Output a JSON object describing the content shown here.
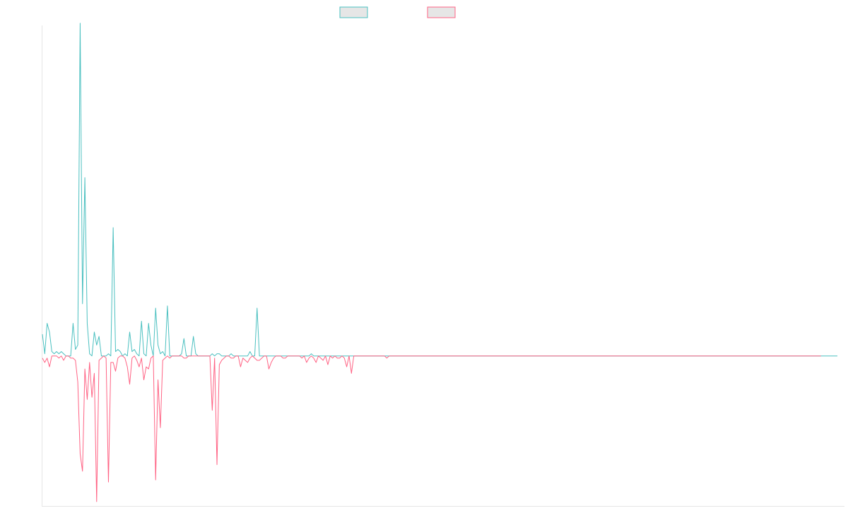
{
  "colors": {
    "positive_series": "#4bc0c0",
    "negative_series": "#ff6384",
    "axis": "#e5e5e5",
    "legend_fill": "#e6e6e6"
  },
  "chart_data": {
    "type": "line",
    "title": "",
    "xlabel": "",
    "ylabel": "",
    "grid": false,
    "legend_position": "top-center",
    "x_range": [
      0,
      340
    ],
    "ylim": [
      -0.69,
      1.52
    ],
    "series": [
      {
        "name": "",
        "color": "#4bc0c0",
        "values": [
          0.1,
          0.01,
          0.15,
          0.11,
          0.02,
          0.01,
          0.02,
          0.01,
          0.02,
          0.01,
          0.0,
          0.0,
          0.0,
          0.15,
          0.03,
          0.05,
          1.53,
          0.24,
          0.82,
          0.15,
          0.01,
          0.0,
          0.11,
          0.05,
          0.09,
          0.0,
          0.0,
          0.0,
          0.01,
          0.0,
          0.59,
          0.02,
          0.03,
          0.02,
          0.0,
          0.01,
          0.0,
          0.11,
          0.02,
          0.03,
          0.01,
          0.0,
          0.16,
          0.01,
          0.0,
          0.15,
          0.05,
          0.0,
          0.22,
          0.05,
          0.01,
          0.02,
          0.0,
          0.23,
          0.0,
          0.0,
          0.0,
          0.0,
          0.0,
          0.01,
          0.08,
          0.0,
          0.0,
          0.0,
          0.09,
          0.01,
          0.0,
          0.0,
          0.0,
          0.0,
          0.0,
          0.0,
          0.01,
          0.0,
          0.01,
          0.01,
          0.0,
          0.0,
          0.0,
          0.0,
          0.01,
          0.0,
          0.0,
          0.0,
          0.0,
          0.0,
          0.0,
          0.0,
          0.02,
          0.0,
          0.0,
          0.22,
          0.0,
          0.0,
          0.0,
          0.0,
          0.0,
          0.0,
          0.0,
          0.0,
          0.0,
          0.0,
          0.0,
          0.0,
          0.0,
          0.0,
          0.0,
          0.0,
          0.0,
          0.0,
          0.0,
          0.0,
          0.0,
          0.0,
          0.01,
          0.0,
          0.0,
          0.0,
          0.0,
          0.0,
          0.0,
          0.0,
          0.0,
          0.0,
          0.0,
          0.0,
          0.0,
          0.0,
          0.0,
          0.0,
          0.0,
          0.0,
          0.0,
          0.0,
          0.0,
          0.0,
          0.0,
          0.0,
          0.0,
          0.0,
          0.0,
          0.0,
          0.0,
          0.0,
          0.0,
          0.0,
          0.0,
          0.0,
          0.0,
          0.0,
          0.0,
          0.0,
          0.0,
          0.0,
          0.0,
          0.0,
          0.0,
          0.0,
          0.0,
          0.0,
          0.0,
          0.0,
          0.0,
          0.0,
          0.0,
          0.0,
          0.0,
          0.0,
          0.0,
          0.0,
          0.0,
          0.0,
          0.0,
          0.0,
          0.0,
          0.0,
          0.0,
          0.0,
          0.0,
          0.0,
          0.0,
          0.0,
          0.0,
          0.0,
          0.0,
          0.0,
          0.0,
          0.0,
          0.0,
          0.0,
          0.0,
          0.0,
          0.0,
          0.0,
          0.0,
          0.0,
          0.0,
          0.0,
          0.0,
          0.0,
          0.0,
          0.0,
          0.0,
          0.0,
          0.0,
          0.0,
          0.0,
          0.0,
          0.0,
          0.0,
          0.0,
          0.0,
          0.0,
          0.0,
          0.0,
          0.0,
          0.0,
          0.0,
          0.0,
          0.0,
          0.0,
          0.0,
          0.0,
          0.0,
          0.0,
          0.0,
          0.0,
          0.0,
          0.0,
          0.0,
          0.0,
          0.0,
          0.0,
          0.0,
          0.0,
          0.0,
          0.0,
          0.0,
          0.0,
          0.0,
          0.0,
          0.0,
          0.0,
          0.0,
          0.0,
          0.0,
          0.0,
          0.0,
          0.0,
          0.0,
          0.0,
          0.0,
          0.0,
          0.0,
          0.0,
          0.0,
          0.0,
          0.0,
          0.0,
          0.0,
          0.0,
          0.0,
          0.0,
          0.0,
          0.0,
          0.0,
          0.0,
          0.0,
          0.0,
          0.0,
          0.0,
          0.0,
          0.0,
          0.0,
          0.0,
          0.0,
          0.0,
          0.0,
          0.0,
          0.0,
          0.0,
          0.0,
          0.0,
          0.0,
          0.0,
          0.0,
          0.0,
          0.0,
          0.0,
          0.0,
          0.0,
          0.0,
          0.0,
          0.0,
          0.0,
          0.0,
          0.0,
          0.0,
          0.0,
          0.0,
          0.0,
          0.0,
          0.0,
          0.0,
          0.0,
          0.0,
          0.0,
          0.0,
          0.0,
          0.0,
          0.0,
          0.0,
          0.0,
          0.0,
          0.0,
          0.0,
          0.0,
          0.0,
          0.0,
          0.0,
          0.0,
          0.0,
          0.0,
          0.0,
          0.0,
          0.0,
          0.0,
          0.0,
          0.0,
          0.0,
          0.0,
          0.0,
          0.0,
          0.0,
          0.0,
          0.0,
          0.0,
          0.0
        ]
      },
      {
        "name": "",
        "color": "#ff6384",
        "values": [
          -0.01,
          -0.03,
          -0.01,
          -0.05,
          0.0,
          0.0,
          0.0,
          -0.01,
          0.0,
          -0.02,
          0.0,
          0.0,
          -0.01,
          -0.01,
          -0.02,
          -0.12,
          -0.45,
          -0.53,
          -0.06,
          -0.2,
          -0.03,
          -0.19,
          -0.08,
          -0.67,
          -0.02,
          -0.01,
          0.0,
          -0.01,
          -0.58,
          -0.03,
          -0.03,
          -0.07,
          -0.01,
          0.0,
          0.0,
          -0.01,
          -0.05,
          -0.13,
          -0.01,
          0.0,
          -0.02,
          -0.05,
          -0.01,
          -0.11,
          -0.05,
          -0.06,
          -0.01,
          0.0,
          -0.57,
          -0.11,
          -0.33,
          -0.02,
          -0.01,
          0.0,
          -0.01,
          0.0,
          0.0,
          0.0,
          0.0,
          0.0,
          -0.01,
          -0.01,
          0.0,
          0.0,
          0.0,
          0.0,
          0.0,
          0.0,
          0.0,
          0.0,
          0.0,
          0.0,
          -0.25,
          -0.01,
          -0.5,
          -0.04,
          -0.02,
          -0.01,
          0.0,
          0.0,
          -0.01,
          -0.01,
          0.0,
          0.0,
          -0.05,
          -0.01,
          -0.02,
          -0.03,
          -0.01,
          0.0,
          -0.01,
          -0.02,
          -0.02,
          -0.01,
          0.0,
          0.0,
          -0.06,
          -0.03,
          -0.01,
          0.0,
          0.0,
          0.0,
          -0.01,
          -0.01,
          0.0,
          0.0,
          0.0,
          0.0,
          0.0,
          0.0,
          -0.01,
          0.0,
          -0.03,
          -0.01,
          0.0,
          -0.01,
          -0.03,
          0.0,
          -0.01,
          -0.02,
          0.0,
          -0.04,
          0.0,
          -0.01,
          0.0,
          -0.01,
          -0.01,
          0.0,
          -0.01,
          -0.05,
          0.0,
          -0.08,
          0.0,
          0.0,
          0.0,
          0.0,
          0.0,
          0.0,
          0.0,
          0.0,
          0.0,
          0.0,
          0.0,
          0.0,
          0.0,
          0.0,
          -0.01,
          0.0,
          0.0,
          0.0,
          0.0,
          0.0,
          0.0,
          0.0,
          0.0,
          0.0,
          0.0,
          0.0,
          0.0,
          0.0,
          0.0,
          0.0,
          0.0,
          0.0,
          0.0,
          0.0,
          0.0,
          0.0,
          0.0,
          0.0,
          0.0,
          0.0,
          0.0,
          0.0,
          0.0,
          0.0,
          0.0,
          0.0,
          0.0,
          0.0,
          0.0,
          0.0,
          0.0,
          0.0,
          0.0,
          0.0,
          0.0,
          0.0,
          0.0,
          0.0,
          0.0,
          0.0,
          0.0,
          0.0,
          0.0,
          0.0,
          0.0,
          0.0,
          0.0,
          0.0,
          0.0,
          0.0,
          0.0,
          0.0,
          0.0,
          0.0,
          0.0,
          0.0,
          0.0,
          0.0,
          0.0,
          0.0,
          0.0,
          0.0,
          0.0,
          0.0,
          0.0,
          0.0,
          0.0,
          0.0,
          0.0,
          0.0,
          0.0,
          0.0,
          0.0,
          0.0,
          0.0,
          0.0,
          0.0,
          0.0,
          0.0,
          0.0,
          0.0,
          0.0,
          0.0,
          0.0,
          0.0,
          0.0,
          0.0,
          0.0,
          0.0,
          0.0,
          0.0,
          0.0,
          0.0,
          0.0,
          0.0,
          0.0,
          0.0,
          0.0,
          0.0,
          0.0,
          0.0,
          0.0,
          0.0,
          0.0,
          0.0,
          0.0,
          0.0,
          0.0,
          0.0,
          0.0,
          0.0,
          0.0,
          0.0,
          0.0,
          0.0,
          0.0,
          0.0,
          0.0,
          0.0,
          0.0,
          0.0,
          0.0,
          0.0,
          0.0,
          0.0,
          0.0,
          0.0,
          0.0,
          0.0,
          0.0,
          0.0,
          0.0,
          0.0,
          0.0,
          0.0,
          0.0,
          0.0,
          0.0,
          0.0,
          0.0,
          0.0,
          0.0,
          0.0,
          0.0,
          0.0,
          0.0,
          0.0,
          0.0,
          0.0,
          0.0,
          0.0,
          0.0,
          0.0,
          0.0,
          0.0,
          0.0,
          0.0,
          0.0,
          0.0,
          0.0,
          0.0,
          0.0,
          0.0,
          0.0,
          0.0,
          0.0,
          0.0,
          0.0,
          0.0,
          0.0,
          0.0,
          0.0,
          0.0,
          0.0,
          0.0,
          0.0,
          0.0,
          0.0,
          0.0
        ]
      }
    ]
  }
}
